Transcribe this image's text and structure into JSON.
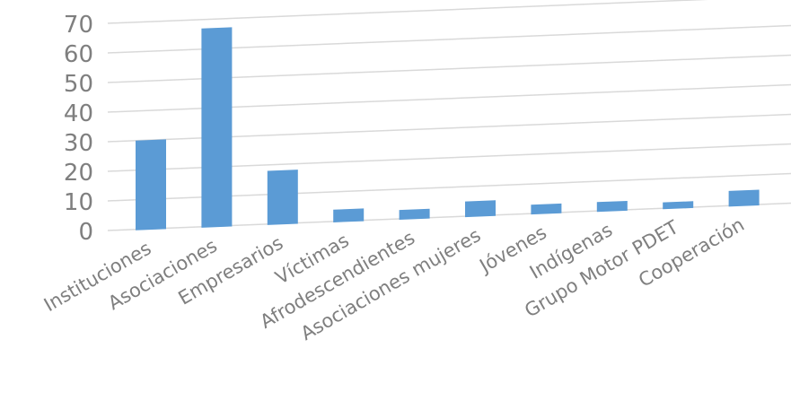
{
  "chart_data": {
    "type": "bar",
    "categories": [
      "Instituciones",
      "Asociaciones",
      "Empresarios",
      "Víctimas",
      "Afrodescendientes",
      "Asociaciones mujeres",
      "Jóvenes",
      "Indígenas",
      "Grupo Motor PDET",
      "Cooperación"
    ],
    "values": [
      30,
      67,
      18,
      4,
      3,
      5,
      3,
      3,
      2,
      5
    ],
    "yticks": [
      0,
      10,
      20,
      30,
      40,
      50,
      60,
      70
    ],
    "ylim": [
      0,
      70
    ],
    "grid": true,
    "legend": "none",
    "bar_color": "#5b9bd5",
    "title": "",
    "xlabel": "",
    "ylabel": ""
  }
}
